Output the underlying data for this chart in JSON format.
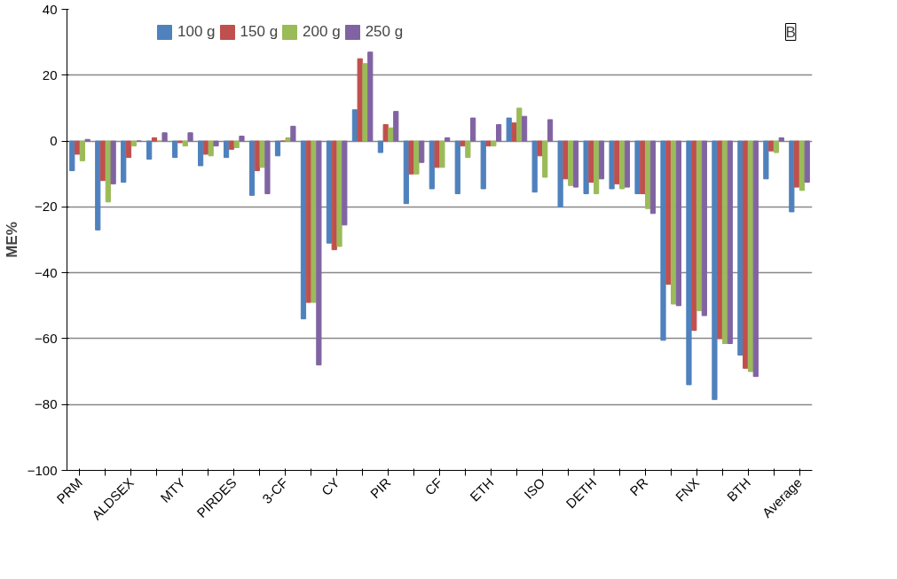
{
  "chart_data": {
    "type": "bar",
    "ylabel": "ME%",
    "categories": [
      "PRM",
      null,
      "ALDSEX",
      null,
      "MTY",
      null,
      "PIRDES",
      null,
      "3-CF",
      null,
      "CY",
      null,
      "PIR",
      null,
      "CF",
      null,
      "ETH",
      null,
      "ISO",
      null,
      "DETH",
      null,
      "PR",
      null,
      "FNX",
      null,
      "BTH",
      null,
      "Average"
    ],
    "series": [
      {
        "name": "100 g",
        "color": "#4f81bd",
        "values": [
          -9,
          -27,
          -12.5,
          -5.5,
          -5,
          -7.5,
          -5,
          -16.5,
          -4.5,
          -54,
          -31,
          9.5,
          -3.5,
          -19,
          -14.5,
          -16,
          -14.5,
          7,
          -15.5,
          -20,
          -16,
          -14.5,
          -16,
          -60.5,
          -74,
          -78.5,
          -65,
          -11.5,
          -21.5
        ]
      },
      {
        "name": "150 g",
        "color": "#c0504d",
        "values": [
          -4,
          -12,
          -5,
          1,
          -0.5,
          -4,
          -2.5,
          -9,
          0,
          -49,
          -33,
          25,
          5,
          -10,
          -8,
          -1.5,
          -1.5,
          5.5,
          -4.5,
          -11.5,
          -12.5,
          -13,
          -16,
          -43.5,
          -57.5,
          -60,
          -69,
          -3,
          -14
        ]
      },
      {
        "name": "200 g",
        "color": "#9bbb59",
        "values": [
          -6,
          -18.5,
          -1.5,
          0,
          -1.5,
          -4.5,
          -2,
          -8,
          1,
          -49,
          -32,
          23.5,
          4,
          -10,
          -8,
          -5,
          -1.5,
          10,
          -11,
          -13.5,
          -16,
          -14.5,
          -20.5,
          -49.5,
          -51.5,
          -61.5,
          -70,
          -3.5,
          -15
        ]
      },
      {
        "name": "250 g",
        "color": "#8064a2",
        "values": [
          0.5,
          -13,
          0,
          2.5,
          2.5,
          -1.5,
          1.5,
          -16,
          4.5,
          -68,
          -25.5,
          27,
          9,
          -6.5,
          1,
          7,
          5,
          7.5,
          6.5,
          -14,
          -11.5,
          -14,
          -22,
          -50,
          -53,
          -61.5,
          -71.5,
          1,
          -12.5
        ]
      }
    ],
    "ylim": [
      -100,
      40
    ],
    "yticks": [
      -100,
      -80,
      -60,
      -40,
      -20,
      0,
      20,
      40
    ],
    "grid": "y",
    "legend": "top",
    "annotations": [
      "B"
    ]
  }
}
